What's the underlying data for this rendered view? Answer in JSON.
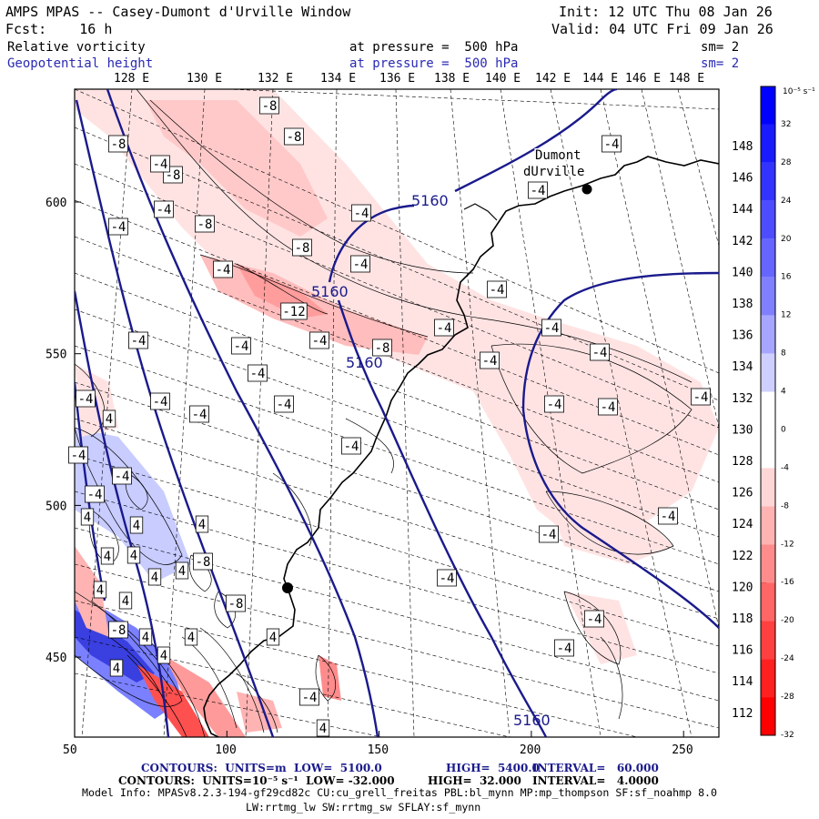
{
  "header": {
    "title": "AMPS MPAS -- Casey-Dumont d'Urville Window",
    "init": "Init: 12 UTC Thu 08 Jan 26",
    "fcst": "Fcst:    16 h",
    "valid": "Valid: 04 UTC Fri 09 Jan 26",
    "field1": "Relative vorticity",
    "field1_level": "at pressure =  500 hPa",
    "field1_sm": "sm= 2",
    "field2": "Geopotential height",
    "field2_level": "at pressure =  500 hPa",
    "field2_sm": "sm= 2"
  },
  "lon_labels": [
    "128 E",
    "130 E",
    "132 E",
    "134 E",
    "136 E",
    "138 E",
    "140 E",
    "142 E",
    "144 E",
    "146 E",
    "148 E"
  ],
  "lat_labels": [
    "148 E",
    "146 E",
    "144 E",
    "142 E",
    "140 E",
    "138 E",
    "136 E",
    "134 E",
    "132 E",
    "130 E",
    "128 E",
    "126 E",
    "124 E",
    "122 E",
    "120 E",
    "118 E",
    "116 E",
    "114 E",
    "112 E"
  ],
  "x_axis": {
    "ticks": [
      50,
      100,
      150,
      200,
      250
    ]
  },
  "y_axis": {
    "ticks": [
      600,
      550,
      500,
      450
    ]
  },
  "colorbar": {
    "units": "10⁻⁵ s⁻¹",
    "labels": [
      "32",
      "28",
      "24",
      "20",
      "16",
      "12",
      "8",
      "4",
      "0",
      "-4",
      "-8",
      "-12",
      "-16",
      "-20",
      "-24",
      "-28",
      "-32"
    ],
    "colors": [
      "#0000ff",
      "#1a1aff",
      "#3333ff",
      "#4d4dff",
      "#6666ff",
      "#8080ff",
      "#a6a6ff",
      "#cfcfff",
      "#ffffff",
      "#ffffff",
      "#ffd6d6",
      "#ffb3b3",
      "#ff8c8c",
      "#ff6666",
      "#ff4040",
      "#ff2020",
      "#ff0000"
    ]
  },
  "places": {
    "dumont": "Dumont\ndUrville",
    "dumont_l1": "Dumont",
    "dumont_l2": "dUrville"
  },
  "height_labels": [
    "5160",
    "5160",
    "5160",
    "5160"
  ],
  "vort_labels": [
    "-8",
    "-8",
    "-8",
    "-8",
    "-8",
    "-8",
    "-12",
    "-8",
    "-4",
    "-4",
    "-4",
    "-4",
    "-4",
    "-4",
    "-4",
    "-4",
    "-4",
    "-4",
    "-4",
    "-4",
    "-4",
    "-4",
    "-4",
    "-4",
    "-4",
    "-4",
    "-4",
    "-4",
    "-4",
    "-4",
    "-4",
    "-4",
    "-4",
    "-4",
    "-4",
    "-4",
    "-4",
    "-4",
    "-4",
    "-4",
    "-4",
    "-8",
    "-8",
    "-8",
    "4",
    "4",
    "4",
    "4",
    "4",
    "4",
    "4",
    "4",
    "4",
    "4",
    "4",
    "4",
    "4",
    "4",
    "-4",
    "4",
    "4"
  ],
  "footer": {
    "line1_a": "CONTOURS:  UNITS=m  LOW=  5100.0",
    "line1_b": "HIGH=  5400.0",
    "line1_c": "INTERVAL=   60.000",
    "line2_a": "CONTOURS:  UNITS=10⁻⁵ s⁻¹  LOW= -32.000",
    "line2_b": "HIGH=  32.000",
    "line2_c": "INTERVAL=   4.0000",
    "line3": "Model Info: MPASv8.2.3-194-gf29cd82c CU:cu_grell_freitas PBL:bl_mynn MP:mp_thompson SF:sf_noahmp 8.0",
    "line4": "LW:rrtmg_lw SW:rrtmg_sw SFLAY:sf_mynn"
  }
}
